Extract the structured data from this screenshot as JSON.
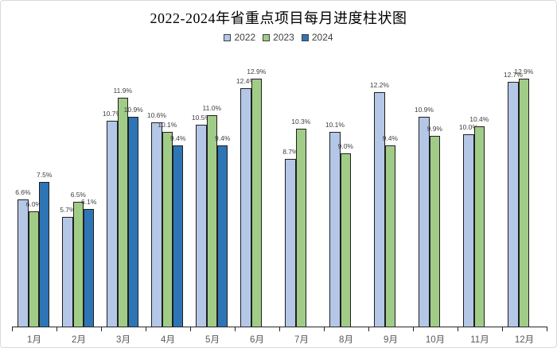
{
  "title": "2022-2024年省重点项目每月进度柱状图",
  "chart_data": {
    "type": "bar",
    "title": "2022-2024年省重点项目每月进度柱状图",
    "categories": [
      "1月",
      "2月",
      "3月",
      "4月",
      "5月",
      "6月",
      "7月",
      "8月",
      "9月",
      "10月",
      "11月",
      "12月"
    ],
    "series": [
      {
        "name": "2022",
        "color": "#B4C7E7",
        "values": [
          6.6,
          5.7,
          10.7,
          10.6,
          10.5,
          12.4,
          8.7,
          10.1,
          12.2,
          10.9,
          10.0,
          12.7
        ]
      },
      {
        "name": "2023",
        "color": "#A0CC87",
        "values": [
          6.0,
          6.5,
          11.9,
          10.1,
          11.0,
          12.9,
          10.3,
          9.0,
          9.4,
          9.9,
          10.4,
          12.9
        ]
      },
      {
        "name": "2024",
        "color": "#2E75B6",
        "values": [
          7.5,
          6.1,
          10.9,
          9.4,
          9.4,
          null,
          null,
          null,
          null,
          null,
          null,
          null
        ]
      }
    ],
    "ylim": [
      0,
      13.5
    ],
    "value_suffix": "%",
    "value_labels": true,
    "grid": false,
    "legend_position": "top-center",
    "xlabel": "",
    "ylabel": "",
    "axis_color": "#262626",
    "label_color": "#3f3f3f",
    "tick_label_color": "#595959"
  }
}
